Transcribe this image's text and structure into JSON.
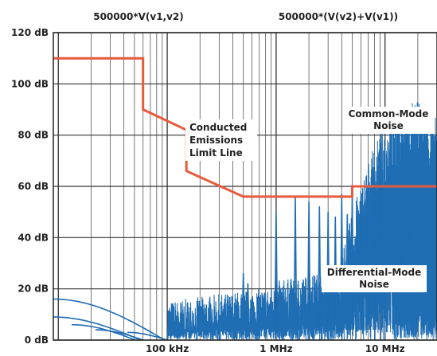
{
  "chart_data": {
    "type": "line",
    "xscale": "log",
    "xlim": [
      9000,
      30000000
    ],
    "ylim": [
      0,
      120
    ],
    "y_unit": "dB",
    "header_left": "500000*V(v1,v2)",
    "header_right": "500000*(V(v2)+V(v1))",
    "yticks": [
      {
        "value": 0,
        "label": "0 dB"
      },
      {
        "value": 20,
        "label": "20 dB"
      },
      {
        "value": 40,
        "label": "40 dB"
      },
      {
        "value": 60,
        "label": "60 dB"
      },
      {
        "value": 80,
        "label": "80 dB"
      },
      {
        "value": 100,
        "label": "100 dB"
      },
      {
        "value": 120,
        "label": "120 dB"
      }
    ],
    "xticks": [
      {
        "value": 100000,
        "label": "100 kHz"
      },
      {
        "value": 1000000,
        "label": "1 MHz"
      },
      {
        "value": 10000000,
        "label": "10 MHz"
      }
    ],
    "limit_line": {
      "color": "#e85a3c",
      "points": [
        [
          9000,
          110
        ],
        [
          60000,
          110
        ],
        [
          60000,
          90
        ],
        [
          150000,
          82
        ],
        [
          150000,
          66
        ],
        [
          500000,
          56
        ],
        [
          5000000,
          56
        ],
        [
          5000000,
          60
        ],
        [
          30000000,
          60
        ]
      ]
    },
    "noise_color": "#1f6db3",
    "annotations": [
      {
        "name": "limit-line-label",
        "lines": [
          "Conducted",
          "Emissions",
          "Limit Line"
        ]
      },
      {
        "name": "common-mode-label",
        "lines": [
          "Common-Mode",
          "Noise"
        ]
      },
      {
        "name": "differential-mode-label",
        "lines": [
          "Differential-Mode",
          "Noise"
        ]
      }
    ]
  }
}
